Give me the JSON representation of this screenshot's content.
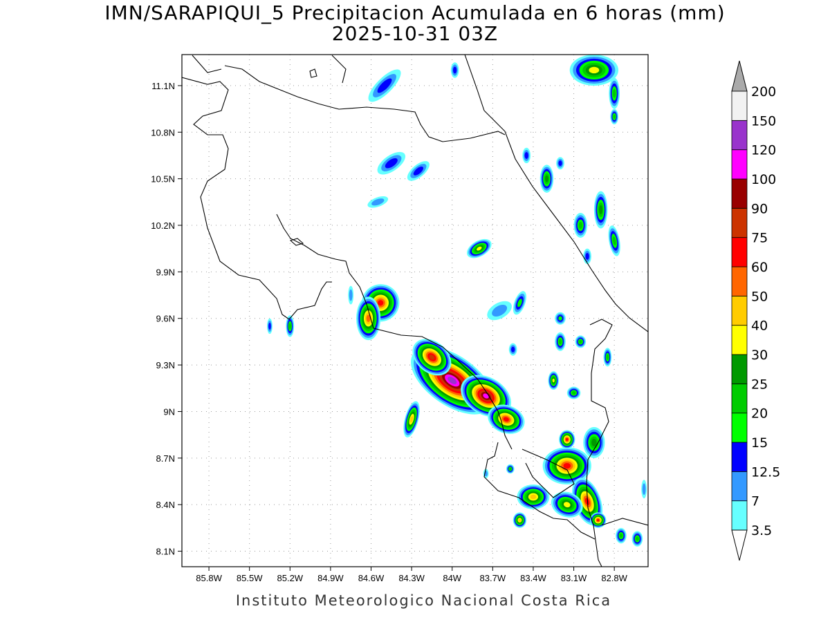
{
  "header": {
    "title_line1": "IMN/SARAPIQUI_5 Precipitacion Acumulada en 6 horas (mm)",
    "title_line2": "2025-10-31 03Z"
  },
  "footer": {
    "credit": "Instituto Meteorologico Nacional Costa Rica"
  },
  "map": {
    "lon_range": [
      -86.0,
      -82.55
    ],
    "lat_range": [
      8.0,
      11.3
    ],
    "lon_ticks": [
      {
        "value": -85.8,
        "label": "85.8W"
      },
      {
        "value": -85.5,
        "label": "85.5W"
      },
      {
        "value": -85.2,
        "label": "85.2W"
      },
      {
        "value": -84.9,
        "label": "84.9W"
      },
      {
        "value": -84.6,
        "label": "84.6W"
      },
      {
        "value": -84.3,
        "label": "84.3W"
      },
      {
        "value": -84.0,
        "label": "84W"
      },
      {
        "value": -83.7,
        "label": "83.7W"
      },
      {
        "value": -83.4,
        "label": "83.4W"
      },
      {
        "value": -83.1,
        "label": "83.1W"
      },
      {
        "value": -82.8,
        "label": "82.8W"
      }
    ],
    "lat_ticks": [
      {
        "value": 8.1,
        "label": "8.1N"
      },
      {
        "value": 8.4,
        "label": "8.4N"
      },
      {
        "value": 8.7,
        "label": "8.7N"
      },
      {
        "value": 9.0,
        "label": "9N"
      },
      {
        "value": 9.3,
        "label": "9.3N"
      },
      {
        "value": 9.6,
        "label": "9.6N"
      },
      {
        "value": 9.9,
        "label": "9.9N"
      },
      {
        "value": 10.2,
        "label": "10.2N"
      },
      {
        "value": 10.5,
        "label": "10.5N"
      },
      {
        "value": 10.8,
        "label": "10.8N"
      },
      {
        "value": 11.1,
        "label": "11.1N"
      }
    ],
    "grid": true
  },
  "colorbar": {
    "levels": [
      {
        "label": "3.5",
        "color": "#66ffff"
      },
      {
        "label": "7",
        "color": "#3399ff"
      },
      {
        "label": "12.5",
        "color": "#0000ff"
      },
      {
        "label": "15",
        "color": "#00ff00"
      },
      {
        "label": "20",
        "color": "#00cc00"
      },
      {
        "label": "25",
        "color": "#009900"
      },
      {
        "label": "30",
        "color": "#ffff00"
      },
      {
        "label": "40",
        "color": "#ffcc00"
      },
      {
        "label": "50",
        "color": "#ff6600"
      },
      {
        "label": "60",
        "color": "#ff0000"
      },
      {
        "label": "75",
        "color": "#cc3300"
      },
      {
        "label": "90",
        "color": "#990000"
      },
      {
        "label": "100",
        "color": "#ff00ff"
      },
      {
        "label": "120",
        "color": "#9933cc"
      },
      {
        "label": "150",
        "color": "#f2f2f2"
      },
      {
        "label": "200",
        "color": "#aaaaaa"
      }
    ]
  },
  "precip_cells": [
    {
      "lon": -84.53,
      "lat": 9.7,
      "rx": 0.14,
      "ry": 0.12,
      "rot": -30,
      "level": 9
    },
    {
      "lon": -84.62,
      "lat": 9.6,
      "rx": 0.09,
      "ry": 0.14,
      "rot": 0,
      "level": 8
    },
    {
      "lon": -84.0,
      "lat": 9.2,
      "rx": 0.35,
      "ry": 0.16,
      "rot": 35,
      "level": 13
    },
    {
      "lon": -84.15,
      "lat": 9.35,
      "rx": 0.16,
      "ry": 0.1,
      "rot": 40,
      "level": 10
    },
    {
      "lon": -83.75,
      "lat": 9.1,
      "rx": 0.2,
      "ry": 0.12,
      "rot": 30,
      "level": 12
    },
    {
      "lon": -83.6,
      "lat": 8.95,
      "rx": 0.14,
      "ry": 0.09,
      "rot": 20,
      "level": 9
    },
    {
      "lon": -84.3,
      "lat": 8.95,
      "rx": 0.05,
      "ry": 0.12,
      "rot": 15,
      "level": 7
    },
    {
      "lon": -83.15,
      "lat": 8.65,
      "rx": 0.18,
      "ry": 0.12,
      "rot": 0,
      "level": 9
    },
    {
      "lon": -83.15,
      "lat": 8.82,
      "rx": 0.06,
      "ry": 0.06,
      "rot": 0,
      "level": 9
    },
    {
      "lon": -83.0,
      "lat": 8.42,
      "rx": 0.1,
      "ry": 0.16,
      "rot": -20,
      "level": 9
    },
    {
      "lon": -82.92,
      "lat": 8.3,
      "rx": 0.06,
      "ry": 0.05,
      "rot": 0,
      "level": 9
    },
    {
      "lon": -83.4,
      "lat": 8.45,
      "rx": 0.12,
      "ry": 0.08,
      "rot": 0,
      "level": 7
    },
    {
      "lon": -83.5,
      "lat": 8.3,
      "rx": 0.05,
      "ry": 0.05,
      "rot": 0,
      "level": 7
    },
    {
      "lon": -83.15,
      "lat": 8.4,
      "rx": 0.12,
      "ry": 0.08,
      "rot": 20,
      "level": 6
    },
    {
      "lon": -83.8,
      "lat": 10.05,
      "rx": 0.1,
      "ry": 0.05,
      "rot": -30,
      "level": 6
    },
    {
      "lon": -84.45,
      "lat": 10.6,
      "rx": 0.12,
      "ry": 0.05,
      "rot": -35,
      "level": 2
    },
    {
      "lon": -84.25,
      "lat": 10.55,
      "rx": 0.1,
      "ry": 0.04,
      "rot": -40,
      "level": 2
    },
    {
      "lon": -84.55,
      "lat": 10.35,
      "rx": 0.08,
      "ry": 0.03,
      "rot": -20,
      "level": 1
    },
    {
      "lon": -84.5,
      "lat": 11.1,
      "rx": 0.16,
      "ry": 0.05,
      "rot": -45,
      "level": 2
    },
    {
      "lon": -83.98,
      "lat": 11.2,
      "rx": 0.03,
      "ry": 0.05,
      "rot": 0,
      "level": 2
    },
    {
      "lon": -82.95,
      "lat": 11.2,
      "rx": 0.18,
      "ry": 0.1,
      "rot": 0,
      "level": 6
    },
    {
      "lon": -82.8,
      "lat": 11.05,
      "rx": 0.04,
      "ry": 0.1,
      "rot": 0,
      "level": 4
    },
    {
      "lon": -82.8,
      "lat": 10.9,
      "rx": 0.03,
      "ry": 0.05,
      "rot": 0,
      "level": 4
    },
    {
      "lon": -83.3,
      "lat": 10.5,
      "rx": 0.05,
      "ry": 0.09,
      "rot": 0,
      "level": 5
    },
    {
      "lon": -83.45,
      "lat": 10.65,
      "rx": 0.03,
      "ry": 0.05,
      "rot": 0,
      "level": 2
    },
    {
      "lon": -83.2,
      "lat": 10.6,
      "rx": 0.03,
      "ry": 0.04,
      "rot": 0,
      "level": 2
    },
    {
      "lon": -82.9,
      "lat": 10.3,
      "rx": 0.05,
      "ry": 0.12,
      "rot": 0,
      "level": 5
    },
    {
      "lon": -83.05,
      "lat": 10.2,
      "rx": 0.05,
      "ry": 0.08,
      "rot": 0,
      "level": 4
    },
    {
      "lon": -82.8,
      "lat": 10.1,
      "rx": 0.04,
      "ry": 0.1,
      "rot": -10,
      "level": 4
    },
    {
      "lon": -83.0,
      "lat": 10.0,
      "rx": 0.03,
      "ry": 0.05,
      "rot": 0,
      "level": 2
    },
    {
      "lon": -85.2,
      "lat": 9.55,
      "rx": 0.03,
      "ry": 0.07,
      "rot": 0,
      "level": 4
    },
    {
      "lon": -85.35,
      "lat": 9.55,
      "rx": 0.02,
      "ry": 0.05,
      "rot": 0,
      "level": 2
    },
    {
      "lon": -84.75,
      "lat": 9.75,
      "rx": 0.02,
      "ry": 0.06,
      "rot": 0,
      "level": 1
    },
    {
      "lon": -83.65,
      "lat": 9.65,
      "rx": 0.1,
      "ry": 0.05,
      "rot": -30,
      "level": 1
    },
    {
      "lon": -83.5,
      "lat": 9.7,
      "rx": 0.04,
      "ry": 0.08,
      "rot": 20,
      "level": 3
    },
    {
      "lon": -83.2,
      "lat": 9.6,
      "rx": 0.04,
      "ry": 0.04,
      "rot": 0,
      "level": 3
    },
    {
      "lon": -83.2,
      "lat": 9.45,
      "rx": 0.04,
      "ry": 0.06,
      "rot": 0,
      "level": 4
    },
    {
      "lon": -83.05,
      "lat": 9.45,
      "rx": 0.04,
      "ry": 0.04,
      "rot": 0,
      "level": 4
    },
    {
      "lon": -83.55,
      "lat": 9.4,
      "rx": 0.03,
      "ry": 0.04,
      "rot": 0,
      "level": 2
    },
    {
      "lon": -83.25,
      "lat": 9.2,
      "rx": 0.04,
      "ry": 0.06,
      "rot": 0,
      "level": 6
    },
    {
      "lon": -83.1,
      "lat": 9.12,
      "rx": 0.05,
      "ry": 0.04,
      "rot": 0,
      "level": 4
    },
    {
      "lon": -82.85,
      "lat": 9.35,
      "rx": 0.03,
      "ry": 0.06,
      "rot": 0,
      "level": 4
    },
    {
      "lon": -82.95,
      "lat": 8.8,
      "rx": 0.08,
      "ry": 0.1,
      "rot": 0,
      "level": 5
    },
    {
      "lon": -82.75,
      "lat": 8.2,
      "rx": 0.04,
      "ry": 0.05,
      "rot": 0,
      "level": 4
    },
    {
      "lon": -82.63,
      "lat": 8.18,
      "rx": 0.04,
      "ry": 0.05,
      "rot": 0,
      "level": 4
    },
    {
      "lon": -82.58,
      "lat": 8.5,
      "rx": 0.02,
      "ry": 0.06,
      "rot": 0,
      "level": 1
    },
    {
      "lon": -83.57,
      "lat": 8.63,
      "rx": 0.03,
      "ry": 0.03,
      "rot": 0,
      "level": 4
    },
    {
      "lon": -83.75,
      "lat": 8.6,
      "rx": 0.02,
      "ry": 0.03,
      "rot": 0,
      "level": 1
    }
  ]
}
